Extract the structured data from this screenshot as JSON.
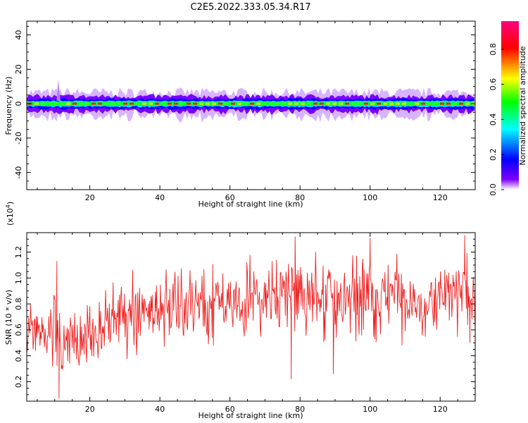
{
  "title": "C2E5.2022.333.05.34.R17",
  "chart_data": [
    {
      "type": "heatmap",
      "xlabel": "Height of straight line (km)",
      "ylabel": "Frequency (Hz)",
      "xlim": [
        2,
        130
      ],
      "ylim": [
        -50,
        48
      ],
      "xticks": [
        20,
        40,
        60,
        80,
        100,
        120
      ],
      "yticks": [
        -40,
        -20,
        0,
        20,
        40
      ],
      "band_center_hz": 0,
      "colorbar": {
        "label": "Normalized spectral amplitude",
        "range": [
          0,
          0.96
        ],
        "ticks": [
          "0.0",
          "0.2",
          "0.4",
          "0.6",
          "0.8"
        ],
        "colors": [
          "#ffffff",
          "#8000ff",
          "#0000ff",
          "#00ffff",
          "#00ff00",
          "#ffff00",
          "#ff0000",
          "#ff0080"
        ]
      }
    },
    {
      "type": "line",
      "xlabel": "Height of straight line (km)",
      "ylabel": "SNR (10 * v/v)",
      "y_multiplier": "(x10",
      "y_multiplier_exp": "4",
      "y_multiplier_close": ")",
      "xlim": [
        2,
        130
      ],
      "ylim": [
        0.05,
        1.35
      ],
      "xticks": [
        20,
        40,
        60,
        80,
        100,
        120
      ],
      "yticks": [
        "0.2",
        "0.4",
        "0.6",
        "0.8",
        "1.0",
        "1.2"
      ],
      "color": "#ee2222",
      "envelope": [
        {
          "x": 2,
          "low": 0.35,
          "high": 0.9
        },
        {
          "x": 6,
          "low": 0.4,
          "high": 0.85
        },
        {
          "x": 8,
          "low": 0.2,
          "high": 0.75
        },
        {
          "x": 10,
          "low": 0.08,
          "high": 1.1
        },
        {
          "x": 12,
          "low": 0.05,
          "high": 0.7
        },
        {
          "x": 15,
          "low": 0.1,
          "high": 0.9
        },
        {
          "x": 20,
          "low": 0.25,
          "high": 0.95
        },
        {
          "x": 30,
          "low": 0.35,
          "high": 1.05
        },
        {
          "x": 40,
          "low": 0.45,
          "high": 1.1
        },
        {
          "x": 50,
          "low": 0.45,
          "high": 1.15
        },
        {
          "x": 60,
          "low": 0.45,
          "high": 1.2
        },
        {
          "x": 70,
          "low": 0.45,
          "high": 1.2
        },
        {
          "x": 80,
          "low": 0.45,
          "high": 1.3
        },
        {
          "x": 90,
          "low": 0.4,
          "high": 1.25
        },
        {
          "x": 100,
          "low": 0.45,
          "high": 1.3
        },
        {
          "x": 110,
          "low": 0.45,
          "high": 1.2
        },
        {
          "x": 120,
          "low": 0.5,
          "high": 1.15
        },
        {
          "x": 127,
          "low": 0.5,
          "high": 1.3
        },
        {
          "x": 130,
          "low": 0.5,
          "high": 1.1
        }
      ],
      "peaks": [
        {
          "x": 10.6,
          "y": 1.13
        },
        {
          "x": 11.2,
          "y": 0.07
        },
        {
          "x": 77.5,
          "y": 0.22
        },
        {
          "x": 78.6,
          "y": 1.32
        },
        {
          "x": 89.5,
          "y": 0.26
        },
        {
          "x": 100,
          "y": 1.31
        },
        {
          "x": 127,
          "y": 1.33
        },
        {
          "x": 128.5,
          "y": 0.5
        }
      ]
    }
  ]
}
